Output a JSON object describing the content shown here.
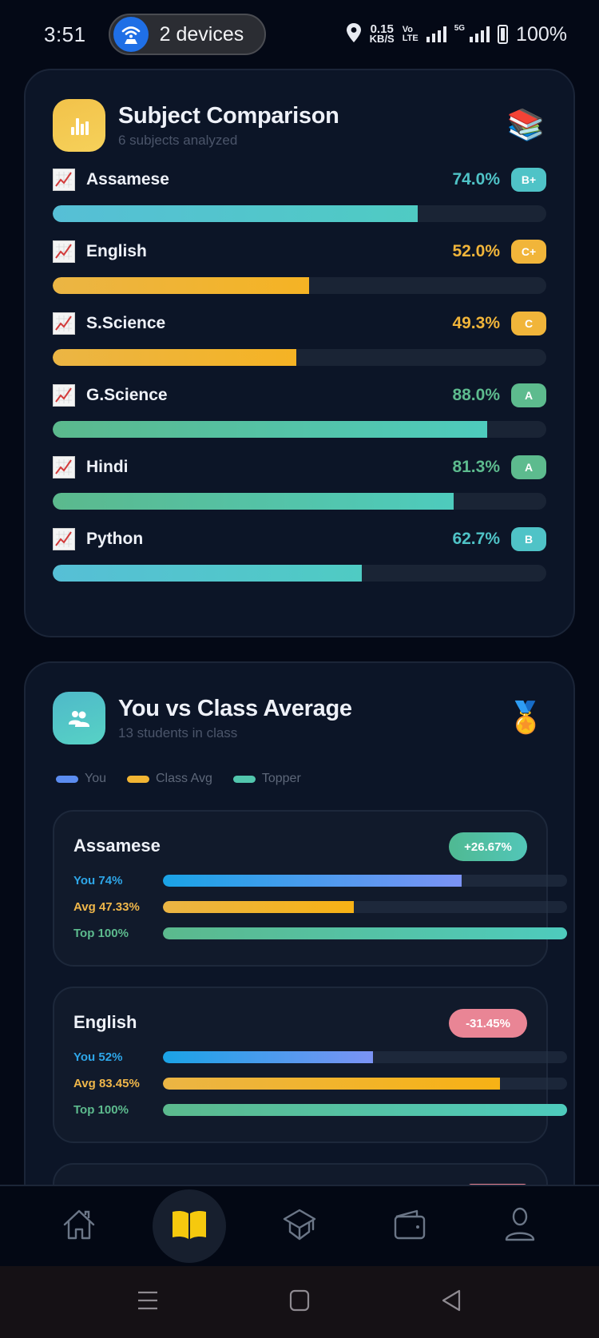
{
  "status_bar": {
    "time": "3:51",
    "hotspot_label": "2 devices",
    "net_speed_value": "0.15",
    "net_speed_unit": "KB/S",
    "volte_top": "Vo",
    "volte_bottom": "LTE",
    "network_5g": "5G",
    "battery_pct": "100%",
    "icons": [
      "hotspot-router-icon",
      "location-pin-icon",
      "volte-icon",
      "signal-bars-icon",
      "5g-signal-icon",
      "battery-icon"
    ]
  },
  "subject_comparison": {
    "title": "Subject Comparison",
    "subtitle": "6 subjects analyzed",
    "header_icon": "bar-chart-icon",
    "header_emoji": "📚",
    "subjects": [
      {
        "name": "Assamese",
        "percent_label": "74.0%",
        "percent": 74.0,
        "grade": "B+",
        "color": "#4fc3c7",
        "fill_from": "#56bfd6",
        "fill_to": "#4fcbc3"
      },
      {
        "name": "English",
        "percent_label": "52.0%",
        "percent": 52.0,
        "grade": "C+",
        "color": "#f1b53a",
        "fill_from": "#ebb544",
        "fill_to": "#f5b324"
      },
      {
        "name": "S.Science",
        "percent_label": "49.3%",
        "percent": 49.3,
        "grade": "C",
        "color": "#f1b53a",
        "fill_from": "#ebb544",
        "fill_to": "#f5b324"
      },
      {
        "name": "G.Science",
        "percent_label": "88.0%",
        "percent": 88.0,
        "grade": "A",
        "color": "#5dbb8e",
        "fill_from": "#5bb98d",
        "fill_to": "#4ecbbd"
      },
      {
        "name": "Hindi",
        "percent_label": "81.3%",
        "percent": 81.3,
        "grade": "A",
        "color": "#5dbb8e",
        "fill_from": "#5bb98d",
        "fill_to": "#4ecbbd"
      },
      {
        "name": "Python",
        "percent_label": "62.7%",
        "percent": 62.7,
        "grade": "B",
        "color": "#4fc3c7",
        "fill_from": "#56bfd6",
        "fill_to": "#4fcbc3"
      }
    ]
  },
  "class_average": {
    "title": "You vs Class Average",
    "subtitle": "13 students in class",
    "header_icon": "users-icon",
    "header_emoji": "🏅",
    "legend": [
      {
        "label": "You",
        "color": "#5b8cf0"
      },
      {
        "label": "Class Avg",
        "color": "#f2b533"
      },
      {
        "label": "Topper",
        "color": "#52c6ad"
      }
    ],
    "cards": [
      {
        "subject": "Assamese",
        "diff": "+26.67%",
        "diff_color": "#4fbfa6",
        "rows": [
          {
            "label": "You 74%",
            "value": 74,
            "label_color": "#2ea6e8"
          },
          {
            "label": "Avg 47.33%",
            "value": 47.33,
            "label_color": "#f0b74a"
          },
          {
            "label": "Top 100%",
            "value": 100,
            "label_color": "#5dbb8e"
          }
        ]
      },
      {
        "subject": "English",
        "diff": "-31.45%",
        "diff_color": "#e98595",
        "rows": [
          {
            "label": "You 52%",
            "value": 52,
            "label_color": "#2ea6e8"
          },
          {
            "label": "Avg 83.45%",
            "value": 83.45,
            "label_color": "#f0b74a"
          },
          {
            "label": "Top 100%",
            "value": 100,
            "label_color": "#5dbb8e"
          }
        ]
      },
      {
        "subject": "",
        "diff": "",
        "diff_color": "#e98595",
        "rows": []
      }
    ]
  },
  "bottom_nav": {
    "items": [
      {
        "name": "home",
        "icon": "home-icon",
        "active": false
      },
      {
        "name": "subjects",
        "icon": "open-book-icon",
        "active": true
      },
      {
        "name": "academics",
        "icon": "graduation-cap-icon",
        "active": false
      },
      {
        "name": "wallet",
        "icon": "wallet-icon",
        "active": false
      },
      {
        "name": "profile",
        "icon": "user-icon",
        "active": false
      }
    ],
    "active_color": "#f6c90e",
    "inactive_color": "#6b7687"
  },
  "system_nav": {
    "items": [
      "recents-menu-icon",
      "home-square-icon",
      "back-triangle-icon"
    ]
  }
}
